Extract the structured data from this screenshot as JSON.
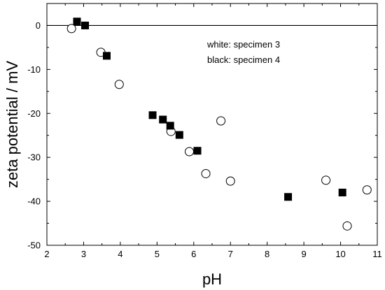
{
  "chart_data": {
    "type": "scatter",
    "title": "",
    "xlabel": "pH",
    "ylabel": "zeta potential / mV",
    "xlim": [
      2,
      11
    ],
    "ylim": [
      -50,
      5
    ],
    "x_ticks": [
      2,
      3,
      4,
      5,
      6,
      7,
      8,
      9,
      10,
      11
    ],
    "y_ticks": [
      0,
      -10,
      -20,
      -30,
      -40,
      -50
    ],
    "x_tick_labels": [
      "2",
      "3",
      "4",
      "5",
      "6",
      "7",
      "8",
      "9",
      "10",
      "11"
    ],
    "y_tick_labels": [
      "0",
      "-10",
      "-20",
      "-30",
      "-40",
      "-50"
    ],
    "zero_line": true,
    "grid": false,
    "legend_text": [
      "white: specimen 3",
      "black: specimen 4"
    ],
    "series": [
      {
        "marker": "open-circle",
        "points": [
          {
            "x": 2.67,
            "y": -0.7
          },
          {
            "x": 3.47,
            "y": -6.1
          },
          {
            "x": 3.97,
            "y": -13.4
          },
          {
            "x": 5.38,
            "y": -24.1
          },
          {
            "x": 5.88,
            "y": -28.7
          },
          {
            "x": 6.33,
            "y": -33.7
          },
          {
            "x": 6.74,
            "y": -21.7
          },
          {
            "x": 7.0,
            "y": -35.4
          },
          {
            "x": 9.6,
            "y": -35.2
          },
          {
            "x": 10.18,
            "y": -45.6
          },
          {
            "x": 10.72,
            "y": -37.4
          }
        ]
      },
      {
        "marker": "filled-square",
        "points": [
          {
            "x": 2.82,
            "y": 0.9
          },
          {
            "x": 3.04,
            "y": 0.0
          },
          {
            "x": 3.63,
            "y": -6.9
          },
          {
            "x": 4.88,
            "y": -20.4
          },
          {
            "x": 5.16,
            "y": -21.4
          },
          {
            "x": 5.36,
            "y": -22.8
          },
          {
            "x": 5.61,
            "y": -24.9
          },
          {
            "x": 6.1,
            "y": -28.5
          },
          {
            "x": 8.57,
            "y": -39.0
          },
          {
            "x": 10.05,
            "y": -38.0
          }
        ]
      }
    ]
  }
}
